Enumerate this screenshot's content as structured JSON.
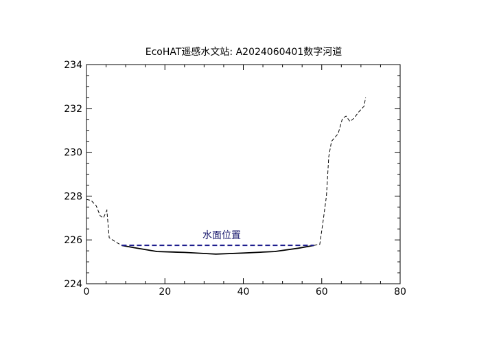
{
  "chart_data": {
    "type": "line",
    "title": "EcoHAT遥感水文站: A2024060401数字河道",
    "xlim": [
      0,
      80
    ],
    "ylim": [
      224,
      234
    ],
    "x_ticks": [
      0,
      20,
      40,
      60,
      80
    ],
    "y_ticks": [
      224,
      226,
      228,
      230,
      232,
      234
    ],
    "grid": false,
    "series": [
      {
        "style": "dashed",
        "color": "#000000",
        "points": [
          [
            0,
            227.85
          ],
          [
            1.2,
            227.8
          ],
          [
            2.5,
            227.55
          ],
          [
            3.5,
            227.1
          ],
          [
            4.3,
            227.0
          ],
          [
            5.2,
            227.35
          ],
          [
            5.8,
            226.1
          ],
          [
            7.5,
            225.9
          ],
          [
            9,
            225.75
          ]
        ]
      },
      {
        "style": "solid",
        "color": "#000000",
        "points": [
          [
            9,
            225.75
          ],
          [
            12,
            225.65
          ],
          [
            18,
            225.47
          ],
          [
            25,
            225.43
          ],
          [
            33,
            225.35
          ],
          [
            40,
            225.4
          ],
          [
            48,
            225.47
          ],
          [
            54,
            225.62
          ],
          [
            58,
            225.75
          ]
        ]
      },
      {
        "style": "dashed",
        "color": "#000000",
        "points": [
          [
            58,
            225.75
          ],
          [
            59.5,
            225.8
          ],
          [
            60.3,
            226.8
          ],
          [
            61.2,
            228.0
          ],
          [
            61.8,
            229.8
          ],
          [
            62.5,
            230.5
          ],
          [
            64.2,
            230.85
          ],
          [
            65.3,
            231.55
          ],
          [
            66.2,
            231.65
          ],
          [
            67.2,
            231.4
          ],
          [
            68.2,
            231.55
          ],
          [
            69.5,
            231.85
          ],
          [
            70.8,
            232.1
          ],
          [
            71.2,
            232.5
          ]
        ]
      }
    ],
    "water_level": {
      "label": "水面位置",
      "y": 225.75,
      "x_range": [
        9,
        58
      ],
      "color": "#1a1a8c",
      "style": "dashed"
    }
  }
}
